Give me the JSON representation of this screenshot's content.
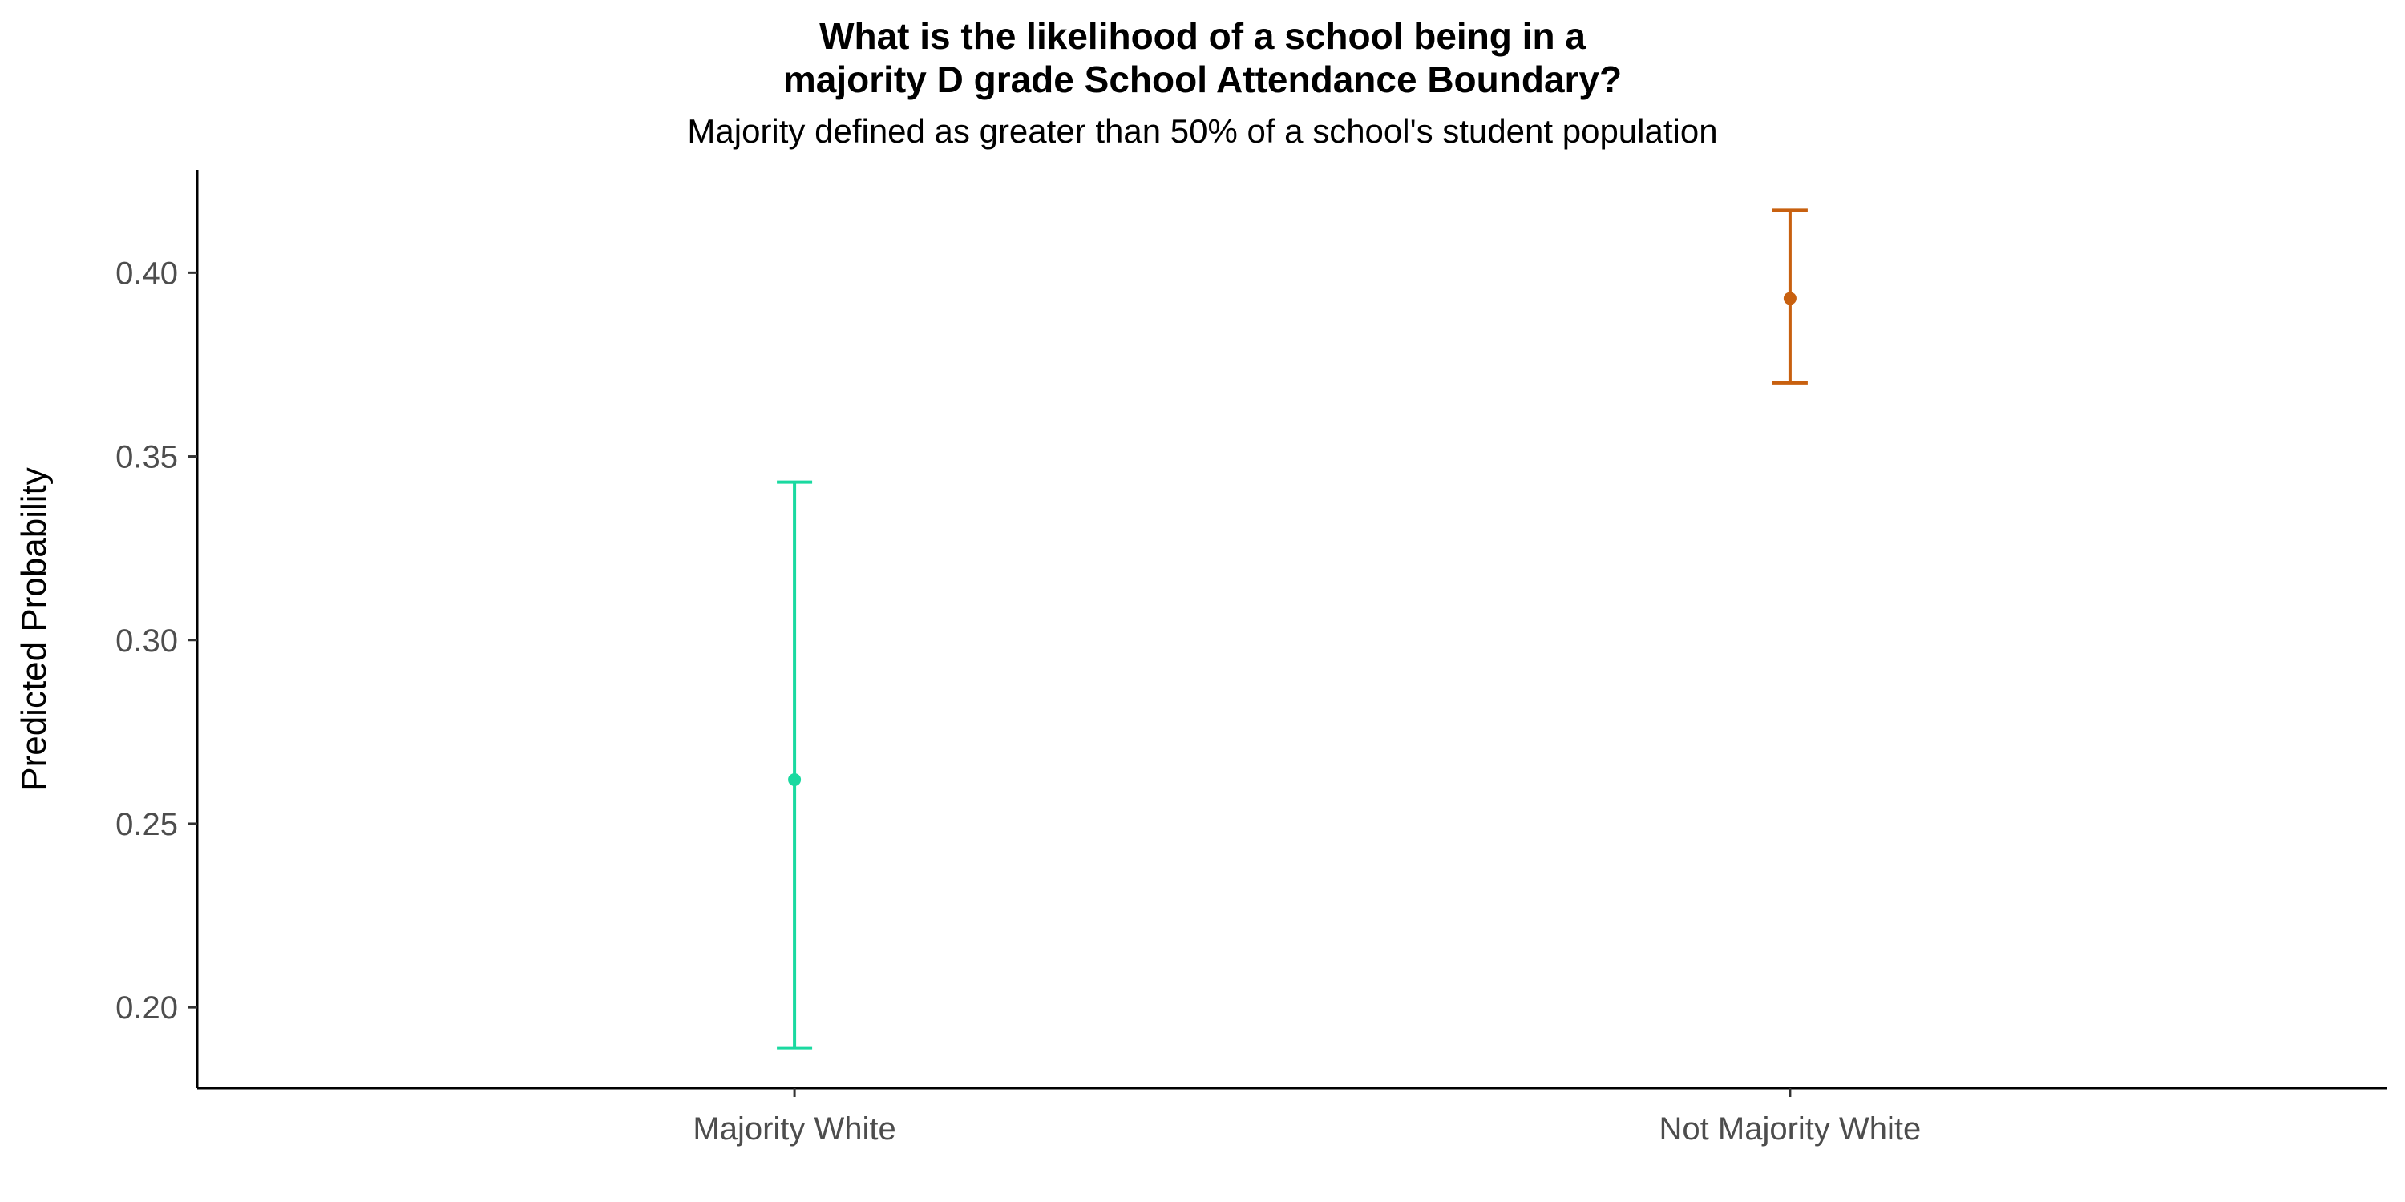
{
  "chart_data": {
    "type": "scatter",
    "title_line1": "What is the likelihood of a school being in a",
    "title_line2": "majority D grade School Attendance Boundary?",
    "subtitle": "Majority defined as greater than 50% of a school's student population",
    "xlabel": "",
    "ylabel": "Predicted Probability",
    "ylim": [
      0.178,
      0.428
    ],
    "yticks": [
      0.2,
      0.25,
      0.3,
      0.35,
      0.4
    ],
    "ytick_labels": [
      "0.20",
      "0.25",
      "0.30",
      "0.35",
      "0.40"
    ],
    "grid": false,
    "legend": "none",
    "categories": [
      "Majority White",
      "Not Majority White"
    ],
    "points": [
      {
        "category": "Majority White",
        "estimate": 0.262,
        "lower": 0.189,
        "upper": 0.343,
        "color": "#1ad9a0"
      },
      {
        "category": "Not Majority White",
        "estimate": 0.393,
        "lower": 0.37,
        "upper": 0.417,
        "color": "#c8600f"
      }
    ]
  }
}
